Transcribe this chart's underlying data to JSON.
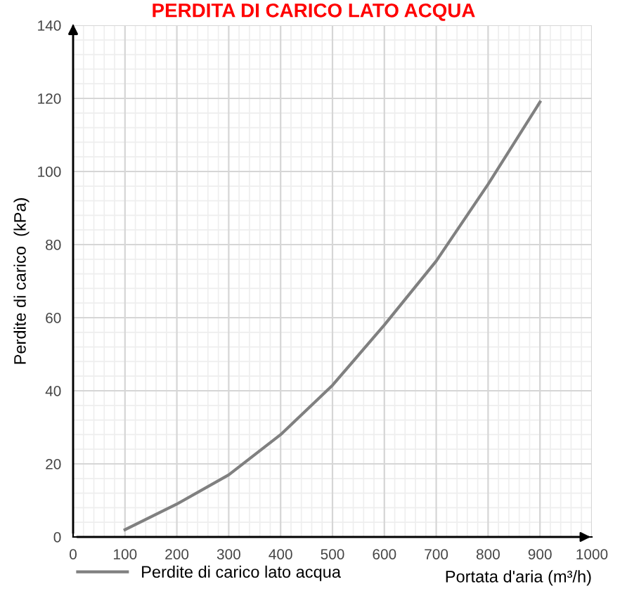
{
  "chart_data": {
    "type": "line",
    "title": "PERDITA DI CARICO LATO ACQUA",
    "xlabel": "Portata d'aria (m³/h)",
    "ylabel": "Perdite di carico  (kPa)",
    "x": [
      100,
      200,
      300,
      400,
      500,
      600,
      700,
      800,
      900
    ],
    "series": [
      {
        "name": "Perdite di carico lato acqua",
        "color": "#808080",
        "values": [
          2,
          9,
          17,
          28,
          41.5,
          58,
          75.5,
          96.5,
          119
        ]
      }
    ],
    "xlim": [
      0,
      1000
    ],
    "ylim": [
      0,
      140
    ],
    "xticks": [
      0,
      100,
      200,
      300,
      400,
      500,
      600,
      700,
      800,
      900,
      1000
    ],
    "yticks": [
      0,
      20,
      40,
      60,
      80,
      100,
      120,
      140
    ],
    "grid": true,
    "legend": "bottom left",
    "marker": "none",
    "line_style": "solid"
  }
}
